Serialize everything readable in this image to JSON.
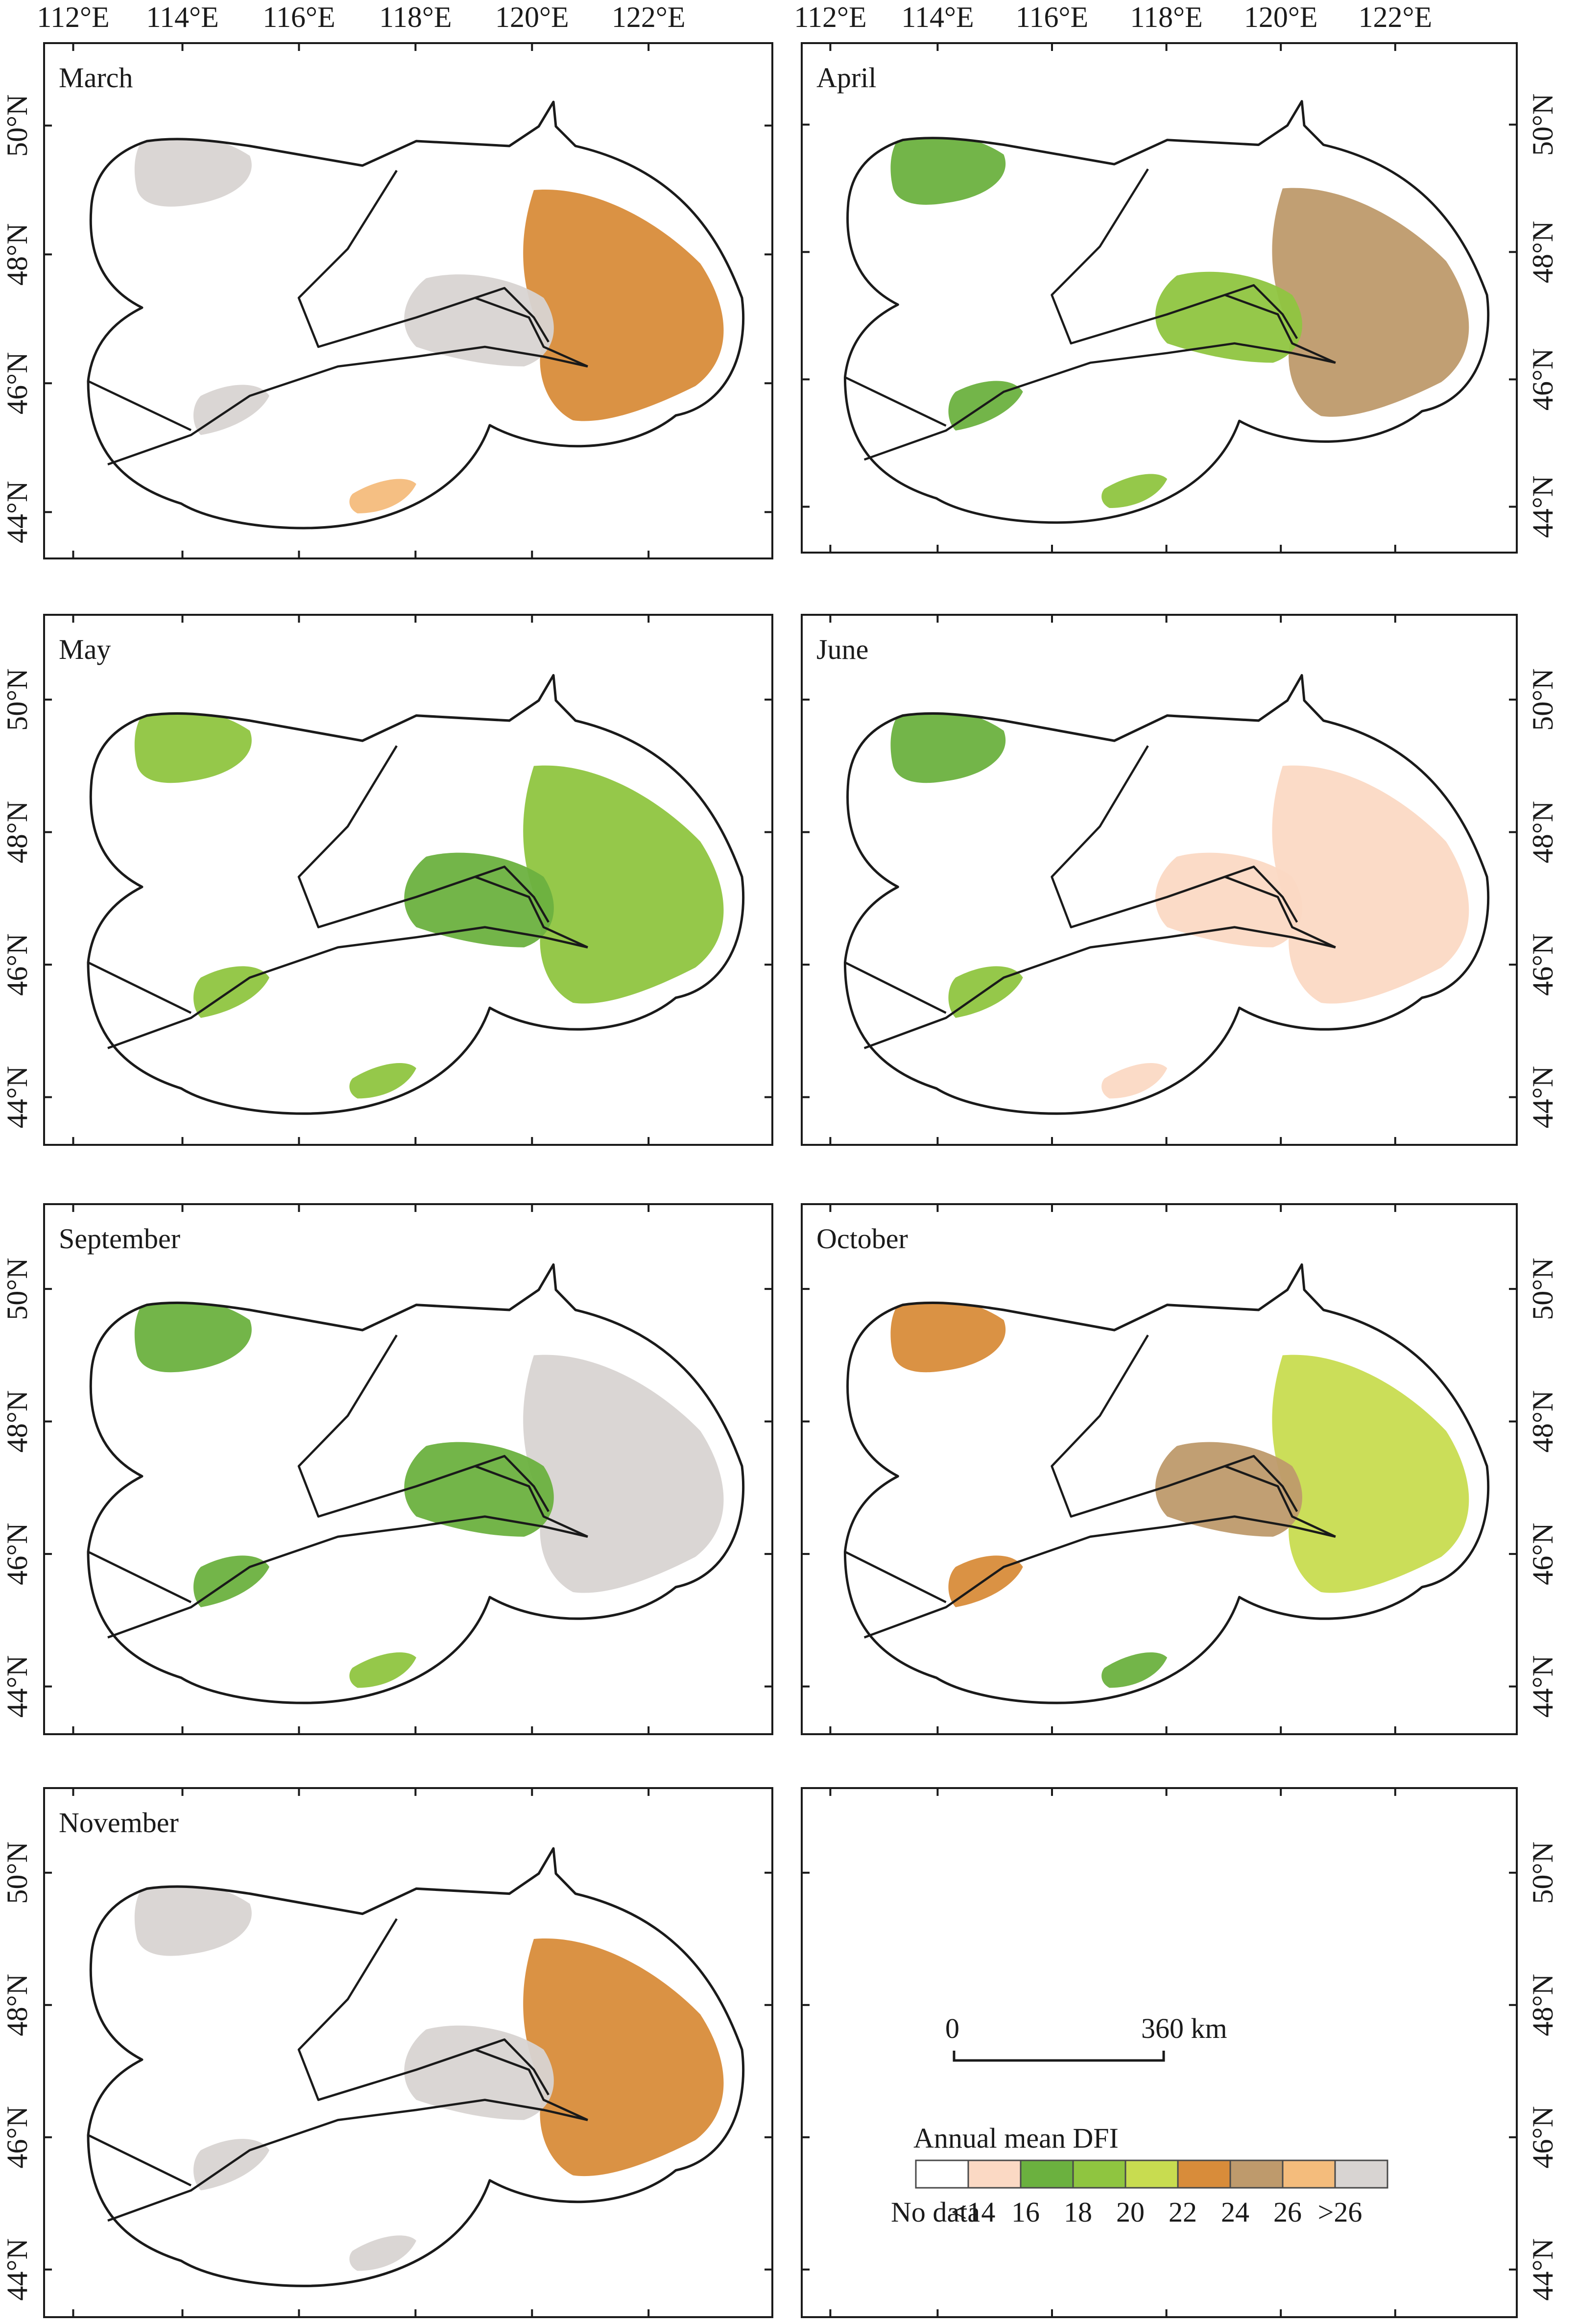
{
  "figure": {
    "lon_ticks": [
      "112°E",
      "114°E",
      "116°E",
      "118°E",
      "120°E",
      "122°E"
    ],
    "lat_ticks": [
      "50°N",
      "48°N",
      "46°N",
      "44°N"
    ],
    "panels": [
      {
        "title": "March",
        "month": "march"
      },
      {
        "title": "April",
        "month": "april"
      },
      {
        "title": "May",
        "month": "may"
      },
      {
        "title": "June",
        "month": "june"
      },
      {
        "title": "September",
        "month": "september"
      },
      {
        "title": "October",
        "month": "october"
      },
      {
        "title": "November",
        "month": "november"
      },
      {
        "title": "",
        "month": "legend-panel"
      }
    ]
  },
  "legend": {
    "title": "Annual mean DFI",
    "classes": [
      {
        "label": "No data",
        "color": "#ffffff"
      },
      {
        "label": "<14",
        "color": "#fbd9c4"
      },
      {
        "label": "16",
        "color": "#6bb13f"
      },
      {
        "label": "18",
        "color": "#8fc540"
      },
      {
        "label": "20",
        "color": "#c8dc50"
      },
      {
        "label": "22",
        "color": "#d88c3a"
      },
      {
        "label": "24",
        "color": "#be9a6c"
      },
      {
        "label": "26",
        "color": "#f4bc7c"
      },
      {
        "label": ">26",
        "color": "#d8d4d2"
      }
    ]
  },
  "scale_bar": {
    "start_label": "0",
    "end_label": "360 km"
  },
  "colors": {
    "grey": "#d8d4d2",
    "peach": "#fbd9c4",
    "green_dark": "#6bb13f",
    "green_mid": "#8fc540",
    "yellow_green": "#c8dc50",
    "orange_brown": "#d88c3a",
    "tan": "#be9a6c",
    "light_orange": "#f4bc7c"
  }
}
